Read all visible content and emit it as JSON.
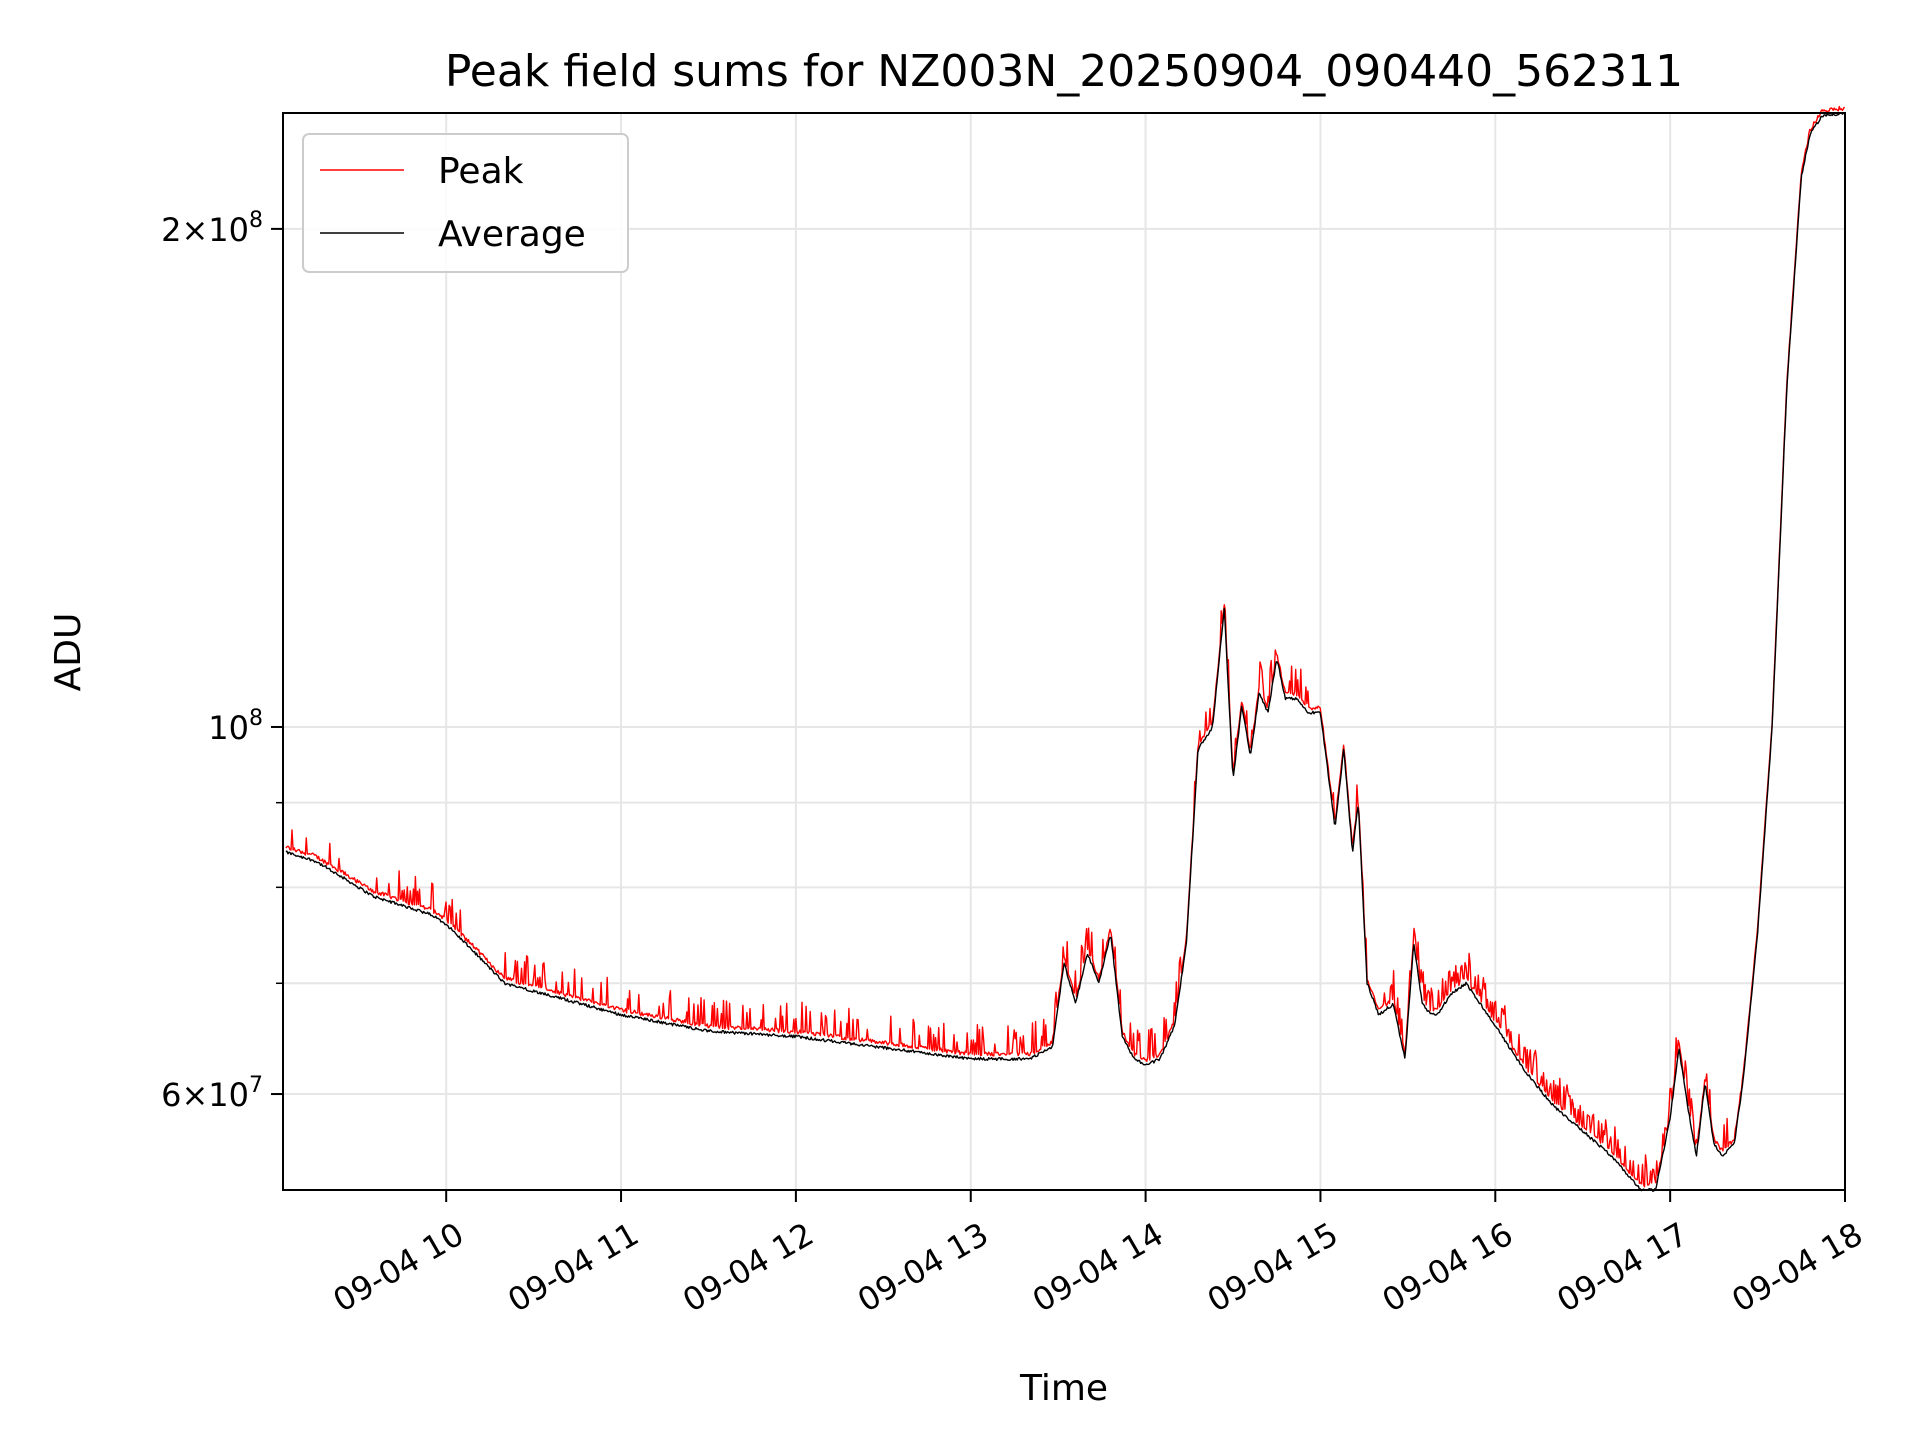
{
  "chart_data": {
    "type": "line",
    "title": "Peak field sums for NZ003N_20250904_090440_562311",
    "xlabel": "Time",
    "ylabel": "ADU",
    "xlim": [
      "09-04 09:04",
      "09-04 18:00"
    ],
    "ylim": [
      52500000,
      235000000
    ],
    "y_scale": "log",
    "grid": true,
    "legend_position": "top-left",
    "x_ticks": [
      "09-04 10",
      "09-04 11",
      "09-04 12",
      "09-04 13",
      "09-04 14",
      "09-04 15",
      "09-04 16",
      "09-04 17",
      "09-04 18"
    ],
    "y_tick_labels": [
      {
        "value": 60000000,
        "mantissa": "6",
        "exponent": "7"
      },
      {
        "value": 100000000,
        "mantissa": "",
        "exponent": "8"
      },
      {
        "value": 200000000,
        "mantissa": "2",
        "exponent": "8"
      }
    ],
    "y_gridlines": [
      60000000,
      70000000,
      80000000,
      90000000,
      100000000,
      200000000
    ],
    "series": [
      {
        "name": "Average",
        "color": "#000000",
        "x": [
          "09-04 09:05",
          "09-04 09:15",
          "09-04 09:25",
          "09-04 09:35",
          "09-04 09:45",
          "09-04 09:55",
          "09-04 10:00",
          "09-04 10:10",
          "09-04 10:20",
          "09-04 10:40",
          "09-04 11:00",
          "09-04 11:30",
          "09-04 12:00",
          "09-04 12:30",
          "09-04 13:00",
          "09-04 13:20",
          "09-04 13:28",
          "09-04 13:32",
          "09-04 13:36",
          "09-04 13:40",
          "09-04 13:44",
          "09-04 13:48",
          "09-04 13:52",
          "09-04 13:56",
          "09-04 14:00",
          "09-04 14:05",
          "09-04 14:10",
          "09-04 14:14",
          "09-04 14:18",
          "09-04 14:23",
          "09-04 14:27",
          "09-04 14:30",
          "09-04 14:33",
          "09-04 14:36",
          "09-04 14:39",
          "09-04 14:42",
          "09-04 14:45",
          "09-04 14:48",
          "09-04 14:52",
          "09-04 14:56",
          "09-04 15:00",
          "09-04 15:05",
          "09-04 15:08",
          "09-04 15:11",
          "09-04 15:13",
          "09-04 15:16",
          "09-04 15:20",
          "09-04 15:25",
          "09-04 15:29",
          "09-04 15:32",
          "09-04 15:35",
          "09-04 15:38",
          "09-04 15:40",
          "09-04 15:45",
          "09-04 15:50",
          "09-04 16:00",
          "09-04 16:10",
          "09-04 16:20",
          "09-04 16:30",
          "09-04 16:40",
          "09-04 16:50",
          "09-04 16:55",
          "09-04 17:00",
          "09-04 17:03",
          "09-04 17:06",
          "09-04 17:09",
          "09-04 17:12",
          "09-04 17:15",
          "09-04 17:18",
          "09-04 17:22",
          "09-04 17:25",
          "09-04 17:30",
          "09-04 17:35",
          "09-04 17:40",
          "09-04 17:45",
          "09-04 17:48",
          "09-04 17:52",
          "09-04 17:56",
          "09-04 18:00"
        ],
        "y": [
          84000000,
          83000000,
          81000000,
          79000000,
          78000000,
          77000000,
          76000000,
          73000000,
          70000000,
          68500000,
          67000000,
          65500000,
          65000000,
          64000000,
          63000000,
          63000000,
          64000000,
          72000000,
          68000000,
          73000000,
          70000000,
          75000000,
          65000000,
          63000000,
          62500000,
          63000000,
          66000000,
          74000000,
          97000000,
          100000000,
          118000000,
          93000000,
          103000000,
          96000000,
          105000000,
          102000000,
          110000000,
          104000000,
          104000000,
          102000000,
          102000000,
          87000000,
          97000000,
          84000000,
          90000000,
          70000000,
          67000000,
          68000000,
          63000000,
          74000000,
          68000000,
          67000000,
          67000000,
          69000000,
          70000000,
          66000000,
          62000000,
          59000000,
          57000000,
          55000000,
          52500000,
          52500000,
          58000000,
          64000000,
          59000000,
          55000000,
          61000000,
          56000000,
          55000000,
          56000000,
          61000000,
          75000000,
          100000000,
          160000000,
          215000000,
          228000000,
          234000000,
          234500000,
          235000000
        ]
      },
      {
        "name": "Peak",
        "color": "#ff0000"
      }
    ]
  }
}
